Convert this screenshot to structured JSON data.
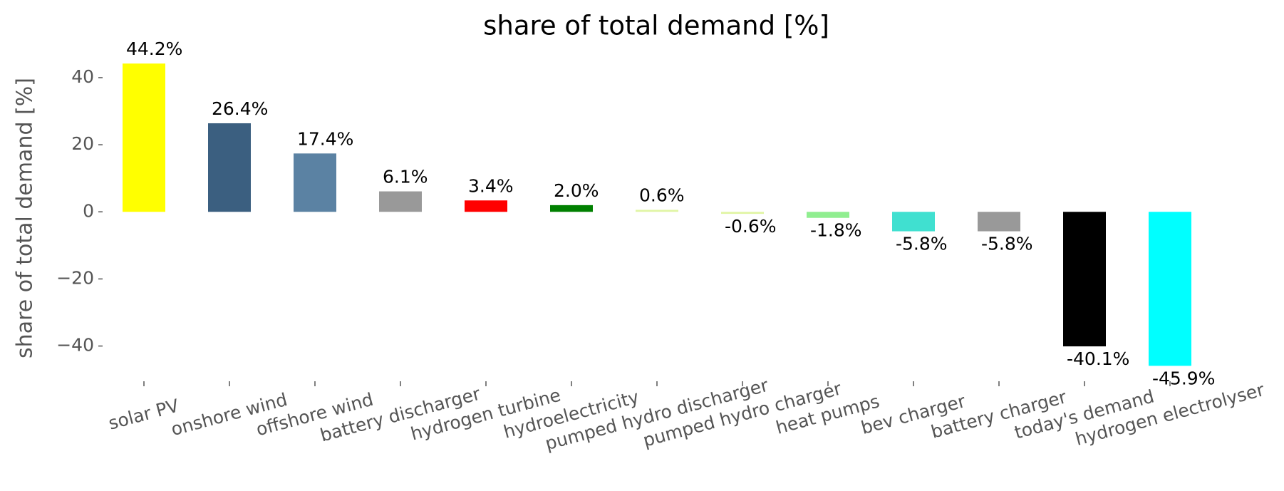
{
  "chart_data": {
    "type": "bar",
    "title": "share of total demand [%]",
    "y_label": "share of total demand [%]",
    "categories": [
      "solar PV",
      "onshore wind",
      "offshore wind",
      "battery discharger",
      "hydrogen turbine",
      "hydroelectricity",
      "pumped hydro discharger",
      "pumped hydro charger",
      "heat pumps",
      "bev charger",
      "battery charger",
      "today's demand",
      "hydrogen electrolyser"
    ],
    "values": [
      44.2,
      26.4,
      17.4,
      6.1,
      3.4,
      2.0,
      0.6,
      -0.6,
      -1.8,
      -5.8,
      -5.8,
      -40.1,
      -45.9
    ],
    "value_labels": [
      "44.2%",
      "26.4%",
      "17.4%",
      "6.1%",
      "3.4%",
      "2.0%",
      "0.6%",
      "-0.6%",
      "-1.8%",
      "-5.8%",
      "-5.8%",
      "-40.1%",
      "-45.9%"
    ],
    "colors": [
      "#ffff00",
      "#3b5f80",
      "#5b82a3",
      "#999999",
      "#ff0000",
      "#008000",
      "#e1f5a5",
      "#e1f5a5",
      "#90ee90",
      "#40e0d0",
      "#999999",
      "#000000",
      "#00ffff"
    ],
    "ylim": [
      -50.5,
      47
    ],
    "yticks": [
      {
        "value": -40,
        "label": "−40"
      },
      {
        "value": -20,
        "label": "−20"
      },
      0,
      20,
      40
    ],
    "grid": false
  }
}
